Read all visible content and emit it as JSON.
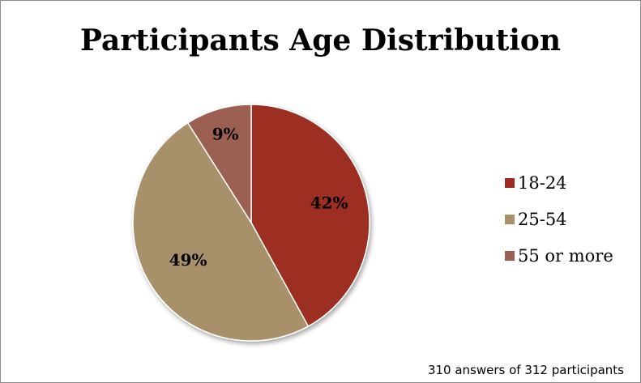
{
  "chart_data": {
    "type": "pie",
    "title": "Participants Age Distribution",
    "categories": [
      "18-24",
      "25-54",
      "55 or more"
    ],
    "values": [
      42,
      49,
      9
    ],
    "value_labels": [
      "42%",
      "49%",
      "9%"
    ],
    "colors": [
      "#9c2d20",
      "#a8916a",
      "#9c6152"
    ],
    "legend_position": "right",
    "note": "310 answers of 312 participants"
  }
}
